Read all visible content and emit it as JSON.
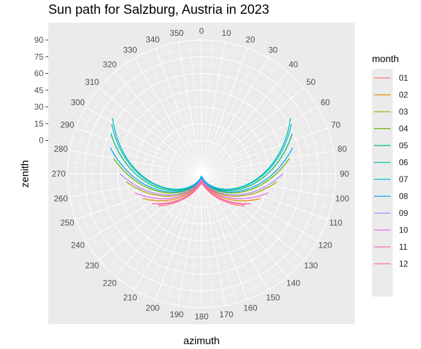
{
  "chart_data": {
    "type": "line",
    "coord": "polar",
    "title": "Sun path for Salzburg, Austria in 2023",
    "xlabel": "azimuth",
    "ylabel": "zenith",
    "theta_ticks": [
      "0",
      "10",
      "20",
      "30",
      "40",
      "50",
      "60",
      "70",
      "80",
      "90",
      "100",
      "110",
      "120",
      "130",
      "140",
      "150",
      "160",
      "170",
      "180",
      "190",
      "200",
      "210",
      "220",
      "230",
      "240",
      "250",
      "260",
      "270",
      "280",
      "290",
      "300",
      "310",
      "320",
      "330",
      "340",
      "350"
    ],
    "r_ticks": [
      "90",
      "75",
      "60",
      "45",
      "30",
      "15",
      "0"
    ],
    "r_tick_values": [
      90,
      75,
      60,
      45,
      30,
      15,
      0
    ],
    "ylim": [
      -30,
      90
    ],
    "grid": true,
    "legend": {
      "title": "month",
      "position": "right"
    },
    "series": [
      {
        "name": "01",
        "color": "#F8766D",
        "azimuth_range": [
          125,
          235
        ],
        "zenith_range": [
          -22,
          18
        ]
      },
      {
        "name": "02",
        "color": "#DB8E00",
        "azimuth_range": [
          113,
          247
        ],
        "zenith_range": [
          -23,
          27
        ]
      },
      {
        "name": "03",
        "color": "#AEA200",
        "azimuth_range": [
          96,
          264
        ],
        "zenith_range": [
          -24,
          38
        ]
      },
      {
        "name": "04",
        "color": "#64B200",
        "azimuth_range": [
          80,
          280
        ],
        "zenith_range": [
          -26,
          50
        ]
      },
      {
        "name": "05",
        "color": "#00BD5C",
        "azimuth_range": [
          66,
          294
        ],
        "zenith_range": [
          -27,
          59
        ]
      },
      {
        "name": "06",
        "color": "#00C1A7",
        "azimuth_range": [
          58,
          302
        ],
        "zenith_range": [
          -28,
          64
        ]
      },
      {
        "name": "07",
        "color": "#00BADE",
        "azimuth_range": [
          61,
          299
        ],
        "zenith_range": [
          -28,
          62
        ]
      },
      {
        "name": "08",
        "color": "#00A6FF",
        "azimuth_range": [
          74,
          286
        ],
        "zenith_range": [
          -27,
          55
        ]
      },
      {
        "name": "09",
        "color": "#B385FF",
        "azimuth_range": [
          90,
          270
        ],
        "zenith_range": [
          -25,
          43
        ]
      },
      {
        "name": "10",
        "color": "#EF67EB",
        "azimuth_range": [
          106,
          254
        ],
        "zenith_range": [
          -24,
          32
        ]
      },
      {
        "name": "11",
        "color": "#FF63B6",
        "azimuth_range": [
          121,
          239
        ],
        "zenith_range": [
          -22,
          22
        ]
      },
      {
        "name": "12",
        "color": "#FF6C91",
        "azimuth_range": [
          127,
          233
        ],
        "zenith_range": [
          -21,
          18
        ]
      }
    ]
  }
}
